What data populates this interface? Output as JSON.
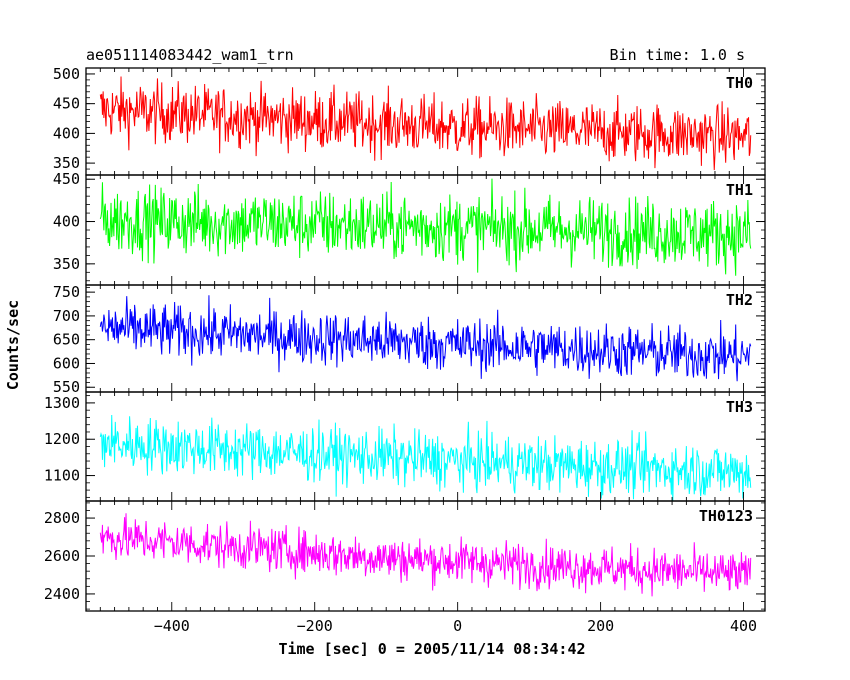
{
  "chart_data": {
    "type": "line",
    "title": "ae051114083442_wam1_trn",
    "subtitle": "Bin time: 1.0 s",
    "xlabel": "Time [sec] 0 = 2005/11/14 08:34:42",
    "ylabel": "Counts/sec",
    "xlim": [
      -520,
      430
    ],
    "x_ticks": [
      -400,
      -200,
      0,
      200,
      400
    ],
    "bin_time_s": 1.0,
    "x_start": -500,
    "x_end": 410,
    "panels": [
      {
        "name": "TH0",
        "color": "#ff0000",
        "ylim": [
          330,
          510
        ],
        "y_ticks": [
          350,
          400,
          450,
          500
        ],
        "trend": {
          "x": [
            -500,
            -250,
            0,
            410
          ],
          "y": [
            440,
            425,
            410,
            395
          ]
        },
        "spread": 25
      },
      {
        "name": "TH1",
        "color": "#00ff00",
        "ylim": [
          325,
          455
        ],
        "y_ticks": [
          350,
          400,
          450
        ],
        "trend": {
          "x": [
            -500,
            0,
            410
          ],
          "y": [
            402,
            393,
            385
          ]
        },
        "spread": 20
      },
      {
        "name": "TH2",
        "color": "#0000ff",
        "ylim": [
          540,
          765
        ],
        "y_ticks": [
          550,
          600,
          650,
          700,
          750
        ],
        "trend": {
          "x": [
            -500,
            0,
            410
          ],
          "y": [
            675,
            640,
            615
          ]
        },
        "spread": 28
      },
      {
        "name": "TH3",
        "color": "#00ffff",
        "ylim": [
          1030,
          1330
        ],
        "y_ticks": [
          1100,
          1200,
          1300
        ],
        "trend": {
          "x": [
            -500,
            0,
            410
          ],
          "y": [
            1190,
            1140,
            1110
          ]
        },
        "spread": 38
      },
      {
        "name": "TH0123",
        "color": "#ff00ff",
        "ylim": [
          2310,
          2890
        ],
        "y_ticks": [
          2400,
          2600,
          2800
        ],
        "trend": {
          "x": [
            -500,
            -100,
            410
          ],
          "y": [
            2700,
            2590,
            2500
          ]
        },
        "spread": 58
      }
    ]
  }
}
